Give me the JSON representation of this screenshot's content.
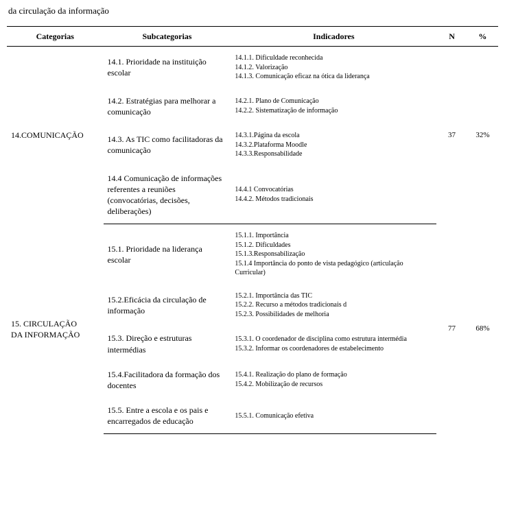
{
  "caption": "da circulação da informação",
  "headers": {
    "categorias": "Categorias",
    "subcategorias": "Subcategorias",
    "indicadores": "Indicadores",
    "n": "N",
    "pct": "%"
  },
  "cat14": {
    "label": "14.COMUNICAÇÃO",
    "n": "37",
    "pct": "32%",
    "s1": {
      "label": "14.1. Prioridade na instituição escolar",
      "i1": "14.1.1. Dificuldade reconhecida",
      "i2": "14.1.2. Valorização",
      "i3": "14.1.3. Comunicação eficaz na ótica da liderança"
    },
    "s2": {
      "label": "14.2. Estratégias para melhorar a comunicação",
      "i1": "14.2.1. Plano de Comunicação",
      "i2": "14.2.2. Sistematização de informação"
    },
    "s3": {
      "label": "14.3. As TIC como facilitadoras da comunicação",
      "i1": "14.3.1.Página da escola",
      "i2": "14.3.2.Plataforma Moodle",
      "i3": "14.3.3.Responsabilidade"
    },
    "s4": {
      "label": "14.4 Comunicação de informações referentes a reuniões (convocatórias, decisões, deliberações)",
      "i1": "14.4.1 Convocatórias",
      "i2": "14.4.2. Métodos tradicionais"
    }
  },
  "cat15": {
    "label1": "15. CIRCULAÇÃO",
    "label2": "DA INFORMAÇÃO",
    "n": "77",
    "pct": "68%",
    "s1": {
      "label": "15.1. Prioridade na liderança escolar",
      "i1": "15.1.1. Importância",
      "i2": "15.1.2. Dificuldades",
      "i3": "15.1.3.Responsabilização",
      "i4": "15.1.4 Importância do ponto de vista pedagógico (articulação Curricular)"
    },
    "s2": {
      "label": "15.2.Eficácia da circulação de informação",
      "i1": "15.2.1. Importância das TIC",
      "i2": "15.2.2. Recurso a métodos tradicionais d",
      "i3": "15.2.3. Possibilidades de melhoria"
    },
    "s3": {
      "label": "15.3. Direção e estruturas intermédias",
      "i1": "15.3.1. O coordenador de disciplina como estrutura intermédia",
      "i2": "15.3.2. Informar os coordenadores de estabelecimento"
    },
    "s4": {
      "label": "15.4.Facilitadora da formação dos docentes",
      "i1": "15.4.1. Realização do plano de formação",
      "i2": "15.4.2. Mobilização de recursos"
    },
    "s5": {
      "label": "15.5. Entre a escola e os pais e encarregados de educação",
      "i1": "15.5.1. Comunicação efetiva"
    }
  }
}
